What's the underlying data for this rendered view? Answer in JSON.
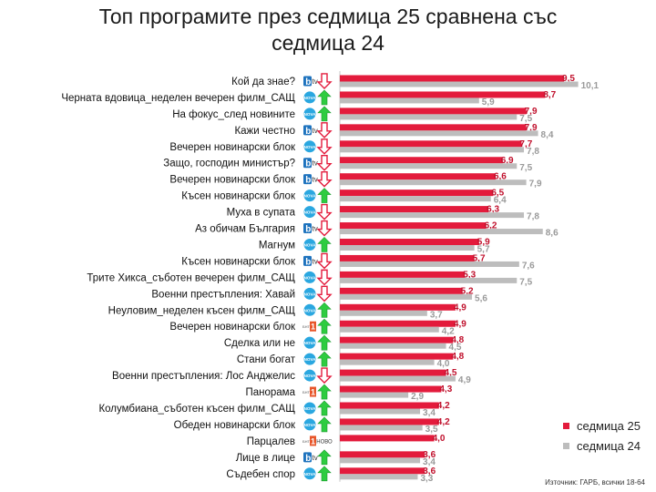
{
  "title": "Топ програмите през седмица 25 сравнена със седмица 24",
  "source": "Източник: ГАРБ, всички 18-64",
  "colors": {
    "week25": "#e31b3c",
    "week24": "#bdbdbd",
    "label25": "#c0102c",
    "label24": "#9a9a9a",
    "up": "#2ecc40",
    "down": "#e31b3c"
  },
  "legend": [
    {
      "key": "week25",
      "label": "седмица 25"
    },
    {
      "key": "week24",
      "label": "седмица 24"
    }
  ],
  "chart_data": {
    "type": "bar",
    "orientation": "horizontal",
    "title": "Топ програмите през седмица 25 сравнена със седмица 24",
    "xlim": [
      0,
      11
    ],
    "grid": false,
    "legend_position": "right",
    "categories": [
      "Кой да знае?",
      "Черната вдовица_неделен вечерен филм_САЩ",
      "На фокус_след новините",
      "Кажи честно",
      "Вечерен новинарски блок",
      "Защо, господин министър?",
      "Вечерен новинарски блок",
      "Късен новинарски блок",
      "Муха в супата",
      "Аз обичам България",
      "Магнум",
      "Късен новинарски блок",
      "Трите Хикса_съботен вечерен филм_САЩ",
      "Военни престъпления: Хавай",
      "Неуловим_неделен късен филм_САЩ",
      "Вечерен новинарски блок",
      "Сделка или не",
      "Стани богат",
      "Военни престъпления: Лос Анджелис",
      "Панорама",
      "Колумбиана_съботен късен филм_САЩ",
      "Обеден новинарски блок",
      "Парцалев",
      "Лице в лице",
      "Съдебен спор"
    ],
    "channels": [
      "btv",
      "nova",
      "nova",
      "btv",
      "nova",
      "btv",
      "btv",
      "nova",
      "nova",
      "btv",
      "nova",
      "btv",
      "nova",
      "nova",
      "nova",
      "bnt1",
      "nova",
      "nova",
      "nova",
      "bnt1",
      "nova",
      "nova",
      "bnt1",
      "btv",
      "nova"
    ],
    "trend": [
      "down",
      "up",
      "up",
      "down",
      "down",
      "down",
      "down",
      "up",
      "down",
      "down",
      "up",
      "down",
      "down",
      "down",
      "up",
      "up",
      "up",
      "up",
      "down",
      "up",
      "up",
      "up",
      "none",
      "up",
      "up"
    ],
    "series": [
      {
        "name": "седмица 25",
        "key": "week25",
        "values": [
          9.5,
          8.7,
          7.9,
          7.9,
          7.7,
          6.9,
          6.6,
          6.5,
          6.3,
          6.2,
          5.9,
          5.7,
          5.3,
          5.2,
          4.9,
          4.9,
          4.8,
          4.8,
          4.5,
          4.3,
          4.2,
          4.2,
          4.0,
          3.6,
          3.6
        ]
      },
      {
        "name": "седмица 24",
        "key": "week24",
        "values": [
          10.1,
          5.9,
          7.5,
          8.4,
          7.8,
          7.5,
          7.9,
          6.4,
          7.8,
          8.6,
          5.7,
          7.6,
          7.5,
          5.6,
          3.7,
          4.2,
          4.5,
          4.0,
          4.9,
          2.9,
          3.4,
          3.5,
          null,
          3.4,
          3.3
        ]
      }
    ]
  },
  "logos": {
    "btv": "btv",
    "nova": "NOVA",
    "bnt1_prefix": "БНТ",
    "bnt1_digit": "1",
    "novo": "НОВО"
  }
}
